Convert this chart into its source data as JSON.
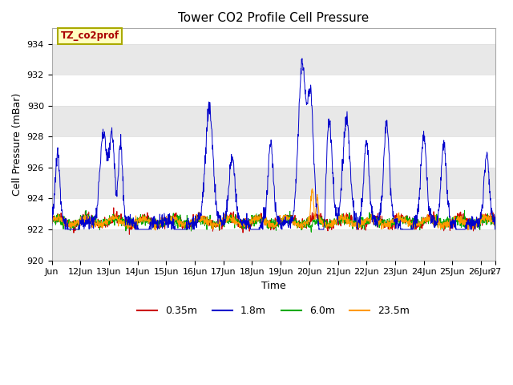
{
  "title": "Tower CO2 Profile Cell Pressure",
  "xlabel": "Time",
  "ylabel": "Cell Pressure (mBar)",
  "ylim": [
    920,
    935
  ],
  "yticks": [
    920,
    922,
    924,
    926,
    928,
    930,
    932,
    934
  ],
  "x_tick_labels": [
    "Jun",
    "12Jun",
    "13Jun",
    "14Jun",
    "15Jun",
    "16Jun",
    "17Jun",
    "18Jun",
    "19Jun",
    "20Jun",
    "21Jun",
    "22Jun",
    "23Jun",
    "24Jun",
    "25Jun",
    "26Jun",
    "27"
  ],
  "x_tick_positions": [
    0,
    1,
    2,
    3,
    4,
    5,
    6,
    7,
    8,
    9,
    10,
    11,
    12,
    13,
    14,
    15,
    15.5
  ],
  "legend_labels": [
    "0.35m",
    "1.8m",
    "6.0m",
    "23.5m"
  ],
  "legend_colors": [
    "#cc0000",
    "#0000cc",
    "#00aa00",
    "#ff9900"
  ],
  "annotation_text": "TZ_co2prof",
  "annotation_color": "#aa0000",
  "annotation_bg": "#ffffc0",
  "annotation_border": "#aaaa00",
  "fig_bg": "#ffffff",
  "plot_bg": "#ffffff",
  "band_color": "#e8e8e8",
  "grid_color": "#e0e0e0"
}
